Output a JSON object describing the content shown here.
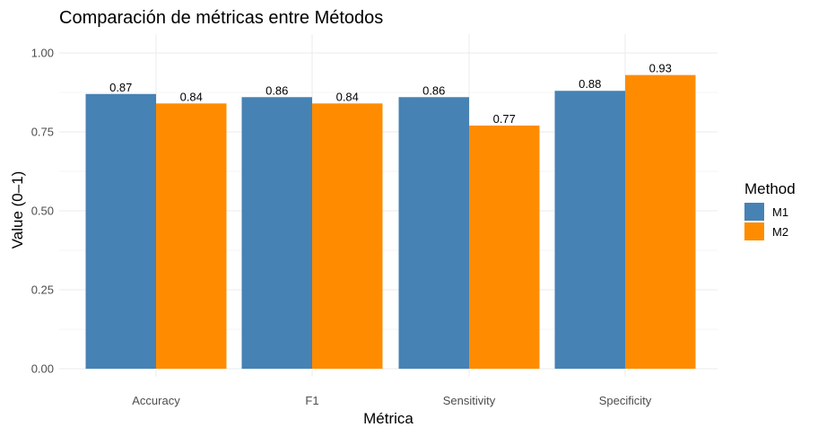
{
  "chart_data": {
    "type": "bar",
    "title": "Comparación de métricas entre Métodos",
    "xlabel": "Métrica",
    "ylabel": "Value (0–1)",
    "categories": [
      "Accuracy",
      "F1",
      "Sensitivity",
      "Specificity"
    ],
    "series": [
      {
        "name": "M1",
        "color": "#4682B4",
        "values": [
          0.87,
          0.86,
          0.86,
          0.88
        ],
        "labels": [
          "0.87",
          "0.86",
          "0.86",
          "0.88"
        ]
      },
      {
        "name": "M2",
        "color": "#FF8C00",
        "values": [
          0.84,
          0.84,
          0.77,
          0.93
        ],
        "labels": [
          "0.84",
          "0.84",
          "0.77",
          "0.93"
        ]
      }
    ],
    "ylim": [
      0,
      1.05
    ],
    "yticks": [
      0,
      0.25,
      0.5,
      0.75,
      1
    ],
    "ytick_labels": [
      "0.00",
      "0.25",
      "0.50",
      "0.75",
      "1.00"
    ],
    "grid": true,
    "legend": {
      "title": "Method",
      "position": "right"
    }
  }
}
